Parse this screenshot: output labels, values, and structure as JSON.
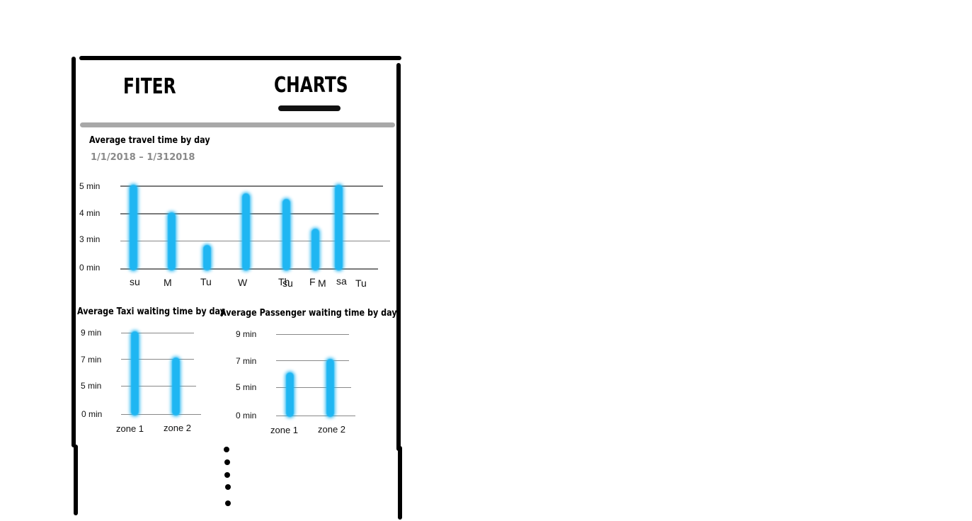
{
  "tabs": [
    {
      "label": "FITER"
    },
    {
      "label": "CHARTS",
      "active": true
    }
  ],
  "travel_chart": {
    "title": "Average travel time by day",
    "date_range": "1/1/2018 – 1/312018",
    "y_labels": [
      "5 min",
      "4 min",
      "3 min",
      "0 min"
    ],
    "x_labels": [
      "su",
      "M",
      "Tu",
      "W",
      "Th",
      "F",
      "sa"
    ],
    "overlap_labels": [
      "su",
      "M",
      "Tu"
    ]
  },
  "taxi_chart": {
    "title": "Average Taxi waiting time by day",
    "y_labels": [
      "9 min",
      "7 min",
      "5 min",
      "0 min"
    ],
    "x_labels": [
      "zone 1",
      "zone 2"
    ]
  },
  "passenger_chart": {
    "title": "Average Passenger waiting time by day",
    "y_labels": [
      "9 min",
      "7 min",
      "5 min",
      "0 min"
    ],
    "x_labels": [
      "zone 1",
      "zone 2"
    ]
  },
  "chart_data": [
    {
      "type": "bar",
      "title": "Average travel time by day",
      "categories": [
        "su",
        "M",
        "Tu",
        "W",
        "Th",
        "F",
        "sa"
      ],
      "values": [
        5.0,
        4.0,
        2.5,
        4.7,
        4.5,
        3.4,
        5.0
      ],
      "ylabel": "",
      "y_ticks": [
        "0 min",
        "3 min",
        "4 min",
        "5 min"
      ],
      "accent": "#1fb6f2"
    },
    {
      "type": "bar",
      "title": "Average Taxi waiting time by day",
      "categories": [
        "zone 1",
        "zone 2"
      ],
      "values": [
        9,
        7
      ],
      "y_ticks": [
        "0 min",
        "5 min",
        "7 min",
        "9 min"
      ],
      "accent": "#1fb6f2"
    },
    {
      "type": "bar",
      "title": "Average Passenger waiting time by day",
      "categories": [
        "zone 1",
        "zone 2"
      ],
      "values": [
        6,
        7
      ],
      "y_ticks": [
        "0 min",
        "5 min",
        "7 min",
        "9 min"
      ],
      "accent": "#1fb6f2"
    }
  ],
  "more_indicator": "vertical-ellipsis"
}
